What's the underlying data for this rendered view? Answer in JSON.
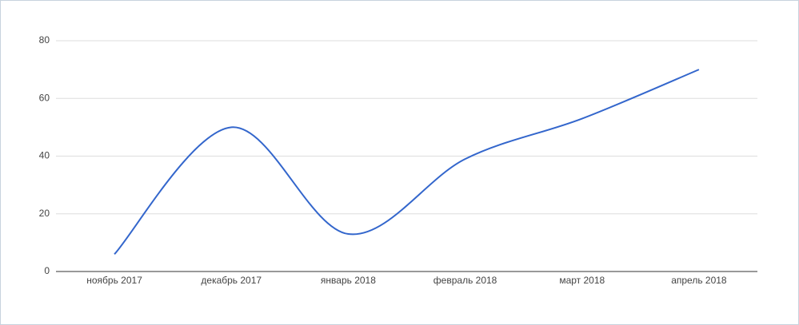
{
  "chart_data": {
    "type": "line",
    "smooth": true,
    "categories": [
      "ноябрь 2017",
      "декабрь 2017",
      "январь 2018",
      "февраль 2018",
      "март 2018",
      "апрель 2018"
    ],
    "series": [
      {
        "color": "#3366cc",
        "values": [
          6,
          50,
          13,
          39,
          53,
          70
        ]
      }
    ],
    "ylim": [
      0,
      80
    ],
    "yticks": [
      0,
      20,
      40,
      60,
      80
    ],
    "grid": true
  }
}
